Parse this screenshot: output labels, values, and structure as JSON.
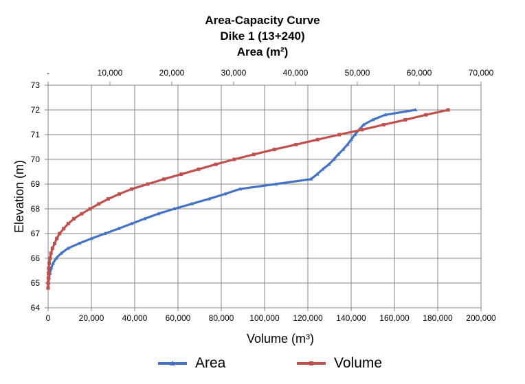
{
  "chart_data": {
    "type": "line",
    "title": "Area-Capacity Curve",
    "subtitle": "Dike 1 (13+240)",
    "top_axis_label": "Area (m²)",
    "xlabel": "Volume (m³)",
    "ylabel": "Elevation (m)",
    "ylim": [
      64,
      73
    ],
    "y_ticks": [
      "64",
      "65",
      "66",
      "67",
      "68",
      "69",
      "70",
      "71",
      "72",
      "73"
    ],
    "x_bottom_lim": [
      0,
      200000
    ],
    "x_bottom_ticks": [
      "0",
      "20,000",
      "40,000",
      "60,000",
      "80,000",
      "100,000",
      "120,000",
      "140,000",
      "160,000",
      "180,000",
      "200,000"
    ],
    "x_top_lim": [
      0,
      70000
    ],
    "x_top_ticks": [
      "-",
      "10,000",
      "20,000",
      "30,000",
      "40,000",
      "50,000",
      "60,000",
      "70,000"
    ],
    "grid": true,
    "legend_position": "bottom",
    "series": [
      {
        "name": "Area",
        "axis": "top",
        "color": "#4472C4",
        "marker": "triangle",
        "points": [
          [
            0,
            64.8
          ],
          [
            50,
            65.0
          ],
          [
            150,
            65.2
          ],
          [
            300,
            65.4
          ],
          [
            500,
            65.6
          ],
          [
            800,
            65.8
          ],
          [
            1300,
            66.0
          ],
          [
            2100,
            66.2
          ],
          [
            3200,
            66.4
          ],
          [
            5000,
            66.6
          ],
          [
            7000,
            66.8
          ],
          [
            9200,
            67.0
          ],
          [
            11400,
            67.2
          ],
          [
            13500,
            67.4
          ],
          [
            15600,
            67.6
          ],
          [
            17800,
            67.8
          ],
          [
            20400,
            68.0
          ],
          [
            23200,
            68.2
          ],
          [
            26000,
            68.4
          ],
          [
            28600,
            68.6
          ],
          [
            31000,
            68.8
          ],
          [
            36800,
            69.0
          ],
          [
            42500,
            69.2
          ],
          [
            43500,
            69.4
          ],
          [
            44400,
            69.6
          ],
          [
            45400,
            69.8
          ],
          [
            46200,
            70.0
          ],
          [
            46900,
            70.2
          ],
          [
            47700,
            70.4
          ],
          [
            48400,
            70.6
          ],
          [
            49000,
            70.8
          ],
          [
            49600,
            71.0
          ],
          [
            50300,
            71.2
          ],
          [
            51000,
            71.4
          ],
          [
            52500,
            71.6
          ],
          [
            54500,
            71.8
          ],
          [
            59400,
            72.0
          ]
        ]
      },
      {
        "name": "Volume",
        "axis": "bottom",
        "color": "#C0504D",
        "marker": "square",
        "points": [
          [
            0,
            64.8
          ],
          [
            0,
            65.0
          ],
          [
            100,
            65.2
          ],
          [
            200,
            65.4
          ],
          [
            300,
            65.6
          ],
          [
            500,
            65.8
          ],
          [
            900,
            66.0
          ],
          [
            1300,
            66.2
          ],
          [
            2000,
            66.4
          ],
          [
            3000,
            66.6
          ],
          [
            4000,
            66.8
          ],
          [
            5300,
            67.0
          ],
          [
            7200,
            67.2
          ],
          [
            9300,
            67.4
          ],
          [
            11900,
            67.6
          ],
          [
            15500,
            67.8
          ],
          [
            19400,
            68.0
          ],
          [
            23400,
            68.2
          ],
          [
            27800,
            68.4
          ],
          [
            32900,
            68.6
          ],
          [
            38600,
            68.8
          ],
          [
            46000,
            69.0
          ],
          [
            53500,
            69.2
          ],
          [
            61500,
            69.4
          ],
          [
            69500,
            69.6
          ],
          [
            77500,
            69.8
          ],
          [
            86000,
            70.0
          ],
          [
            95000,
            70.2
          ],
          [
            104500,
            70.4
          ],
          [
            114500,
            70.6
          ],
          [
            124500,
            70.8
          ],
          [
            134500,
            71.0
          ],
          [
            145000,
            71.2
          ],
          [
            155000,
            71.4
          ],
          [
            165000,
            71.6
          ],
          [
            174500,
            71.8
          ],
          [
            184800,
            72.0
          ]
        ]
      }
    ]
  }
}
